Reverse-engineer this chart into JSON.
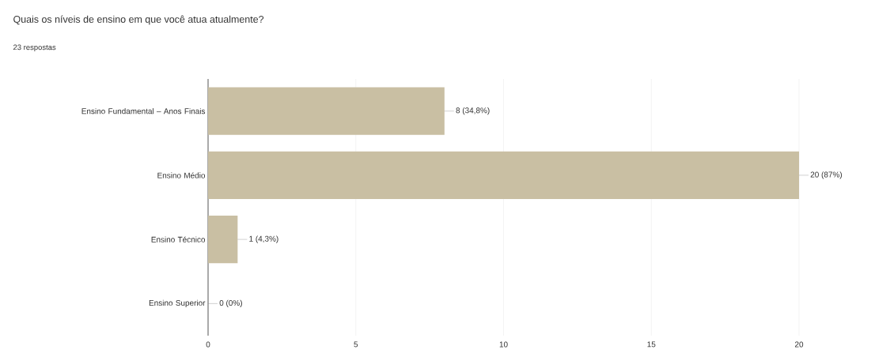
{
  "chart_data": {
    "type": "bar",
    "orientation": "horizontal",
    "title": "Quais os níveis de ensino em que você atua atualmente?",
    "subtitle": "23 respostas",
    "categories": [
      "Ensino Fundamental – Anos Finais",
      "Ensino Médio",
      "Ensino Técnico",
      "Ensino Superior"
    ],
    "values": [
      8,
      20,
      1,
      0
    ],
    "color": "#c9bfa3",
    "value_labels": [
      "8 (34,8%)",
      "20 (87%)",
      "1 (4,3%)",
      "0 (0%)"
    ],
    "xlim": [
      0,
      20
    ],
    "xticks": [
      0,
      5,
      10,
      15,
      20
    ],
    "grid": "x"
  }
}
